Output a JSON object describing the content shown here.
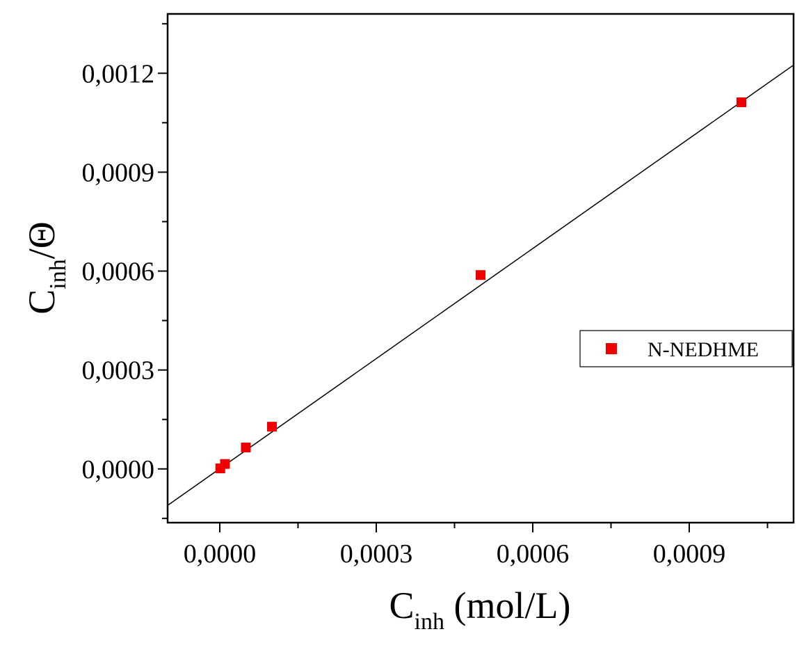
{
  "chart_data": {
    "type": "scatter",
    "title": "",
    "xlabel": {
      "main": "C",
      "sub": "inh",
      "unit": " (mol/L)"
    },
    "ylabel": {
      "main": "C",
      "sub": "inh",
      "suffix": "/Θ"
    },
    "xlim": [
      -0.0001,
      0.0011
    ],
    "ylim": [
      -0.000163,
      0.00138
    ],
    "x_ticks": [
      {
        "value": 0.0,
        "label": "0,0000"
      },
      {
        "value": 0.0003,
        "label": "0,0003"
      },
      {
        "value": 0.0006,
        "label": "0,0006"
      },
      {
        "value": 0.0009,
        "label": "0,0009"
      }
    ],
    "x_minor_ticks": [
      0.00015,
      0.00045,
      0.00075,
      0.00105
    ],
    "y_ticks": [
      {
        "value": 0.0,
        "label": "0,0000"
      },
      {
        "value": 0.0003,
        "label": "0,0003"
      },
      {
        "value": 0.0006,
        "label": "0,0006"
      },
      {
        "value": 0.0009,
        "label": "0,0009"
      },
      {
        "value": 0.0012,
        "label": "0,0012"
      }
    ],
    "y_minor_ticks": [
      -0.00015,
      0.00015,
      0.00045,
      0.00075,
      0.00105,
      0.00135
    ],
    "grid": false,
    "legend": {
      "position": "right",
      "entries": [
        "N-NEDHME"
      ]
    },
    "series": [
      {
        "name": "N-NEDHME",
        "color": "#ee0000",
        "marker": "square",
        "points": [
          {
            "x": 1e-06,
            "y": 1.5e-06
          },
          {
            "x": 1e-05,
            "y": 1.5e-05
          },
          {
            "x": 5e-05,
            "y": 6.5e-05
          },
          {
            "x": 0.0001,
            "y": 0.000128
          },
          {
            "x": 0.0005,
            "y": 0.000588
          },
          {
            "x": 0.001,
            "y": 0.001112
          }
        ]
      }
    ],
    "fit_line": {
      "color": "#000000",
      "slope": 1.113,
      "intercept": 6e-07
    }
  }
}
